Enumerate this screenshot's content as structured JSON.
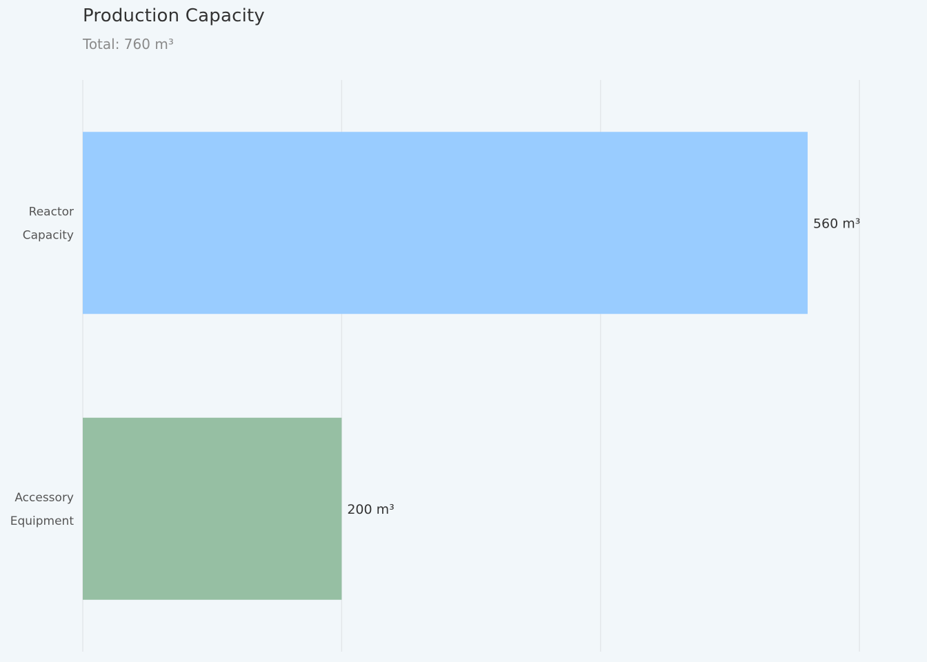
{
  "chart_title": "Production Capacity",
  "chart_subtitle": "Total: 760 m³",
  "chart_data": {
    "type": "bar",
    "orientation": "horizontal",
    "title": "Production Capacity",
    "subtitle": "Total: 760 m³",
    "categories": [
      [
        "Reactor",
        "Capacity"
      ],
      [
        "Accessory",
        "Equipment"
      ]
    ],
    "values": [
      560,
      200
    ],
    "value_labels": [
      "560 m³",
      "200 m³"
    ],
    "unit": "m³",
    "colors": [
      "#99ccff",
      "#96bfa3"
    ],
    "xlim": [
      0,
      600
    ],
    "gridlines": [
      0,
      200,
      400,
      600
    ],
    "grid": true,
    "xlabel": "",
    "ylabel": ""
  }
}
